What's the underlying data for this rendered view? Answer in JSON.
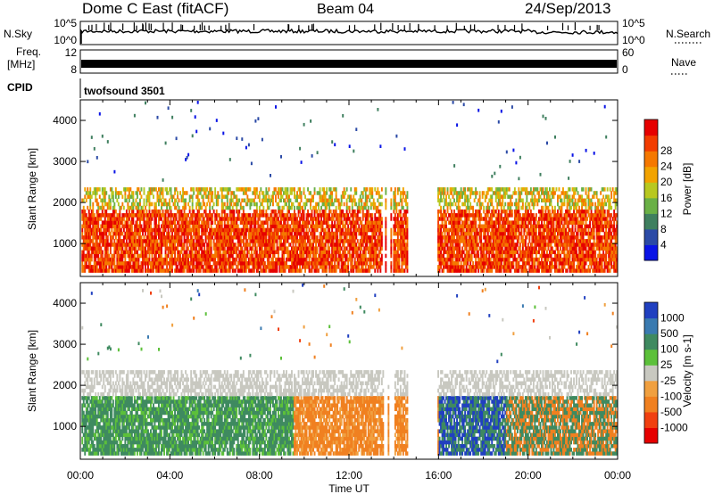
{
  "header": {
    "station": "Dome C East (fitACF)",
    "beam": "Beam 04",
    "date": "24/Sep/2013"
  },
  "top_panels": {
    "nsky_label": "N.Sky",
    "nsky_ticks": [
      "10^5",
      "10^0"
    ],
    "nsearch_label": "N.Search",
    "nsearch_ticks": [
      "10^5",
      "10^0"
    ],
    "freq_label_1": "Freq.",
    "freq_label_2": "[MHz]",
    "freq_ticks": [
      "12",
      "8"
    ],
    "nave_label": "Nave",
    "nave_ticks": [
      "60",
      "0"
    ],
    "cpid_label": "CPID",
    "cpid_value": "twofsound 3501"
  },
  "chart_data": [
    {
      "type": "heatmap",
      "name": "power",
      "ylabel": "Slant Range [km]",
      "ylim": [
        200,
        4500
      ],
      "yticks": [
        "1000",
        "2000",
        "3000",
        "4000"
      ],
      "xlim": [
        0,
        24
      ],
      "colorbar_label": "Power [dB]",
      "colorbar_ticks": [
        "4",
        "8",
        "12",
        "16",
        "20",
        "24",
        "28"
      ],
      "colors": [
        "#0a14e6",
        "#2b4aa6",
        "#3f7f5f",
        "#6ab046",
        "#b8c820",
        "#f2a300",
        "#f57800",
        "#f23c00",
        "#e60000"
      ]
    },
    {
      "type": "heatmap",
      "name": "velocity",
      "ylabel": "Slant Range [km]",
      "ylim": [
        200,
        4500
      ],
      "yticks": [
        "1000",
        "2000",
        "3000",
        "4000"
      ],
      "xlim": [
        0,
        24
      ],
      "xlabel": "Time UT",
      "xticks": [
        "00:00",
        "04:00",
        "08:00",
        "12:00",
        "16:00",
        "20:00",
        "00:00"
      ],
      "colorbar_label": "Velocity [m s-1]",
      "colorbar_ticks": [
        "1000",
        "500",
        "100",
        "25",
        "-25",
        "-100",
        "-500",
        "-1000"
      ],
      "colors": [
        "#2040c0",
        "#3a7ab0",
        "#3f8a60",
        "#5cc03a",
        "#c8c8c0",
        "#f0a040",
        "#f08020",
        "#f04010",
        "#e60000"
      ]
    }
  ]
}
